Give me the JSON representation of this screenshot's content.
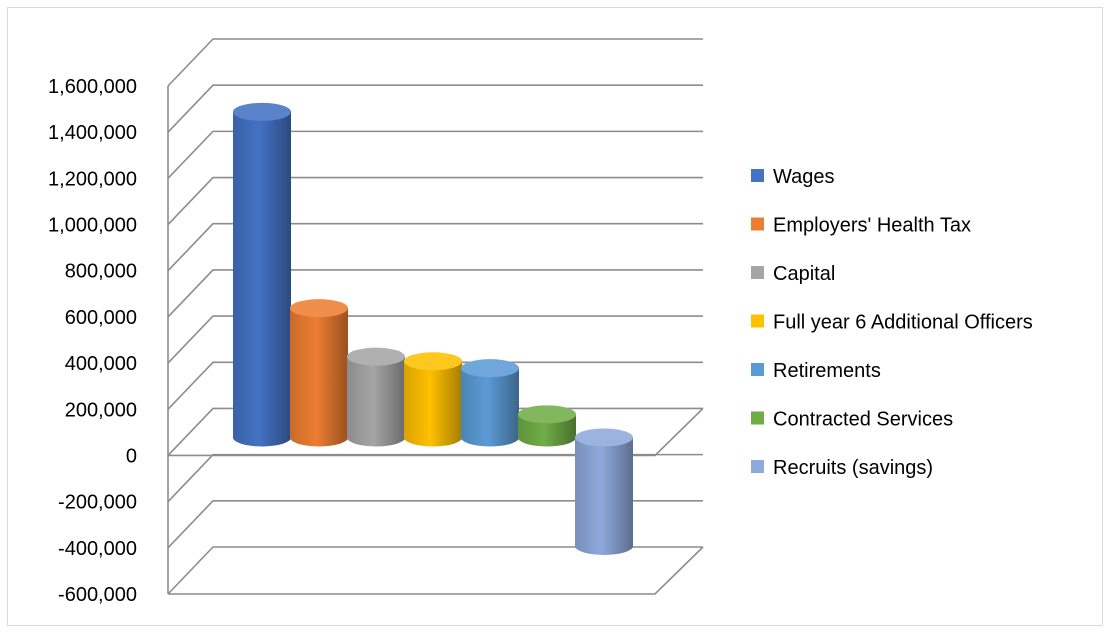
{
  "chart_data": {
    "type": "bar",
    "style": "3d-cylinder",
    "series": [
      {
        "name": "Wages",
        "value": 1410000,
        "color": "#4472C4"
      },
      {
        "name": "Employers' Health Tax",
        "value": 560000,
        "color": "#ED7D31"
      },
      {
        "name": "Capital",
        "value": 350000,
        "color": "#A5A5A5"
      },
      {
        "name": "Full year 6 Additional Officers",
        "value": 330000,
        "color": "#FFC000"
      },
      {
        "name": "Retirements",
        "value": 300000,
        "color": "#5B9BD5"
      },
      {
        "name": "Contracted Services",
        "value": 100000,
        "color": "#70AD47"
      },
      {
        "name": "Recruits (savings)",
        "value": -470000,
        "color": "#8EA9DB"
      }
    ],
    "y_ticks": [
      "1,600,000",
      "1,400,000",
      "1,200,000",
      "1,000,000",
      "800,000",
      "600,000",
      "400,000",
      "200,000",
      "0",
      "-200,000",
      "-400,000",
      "-600,000"
    ],
    "ylim": [
      -600000,
      1600000
    ],
    "grid": true,
    "legend_position": "right"
  }
}
